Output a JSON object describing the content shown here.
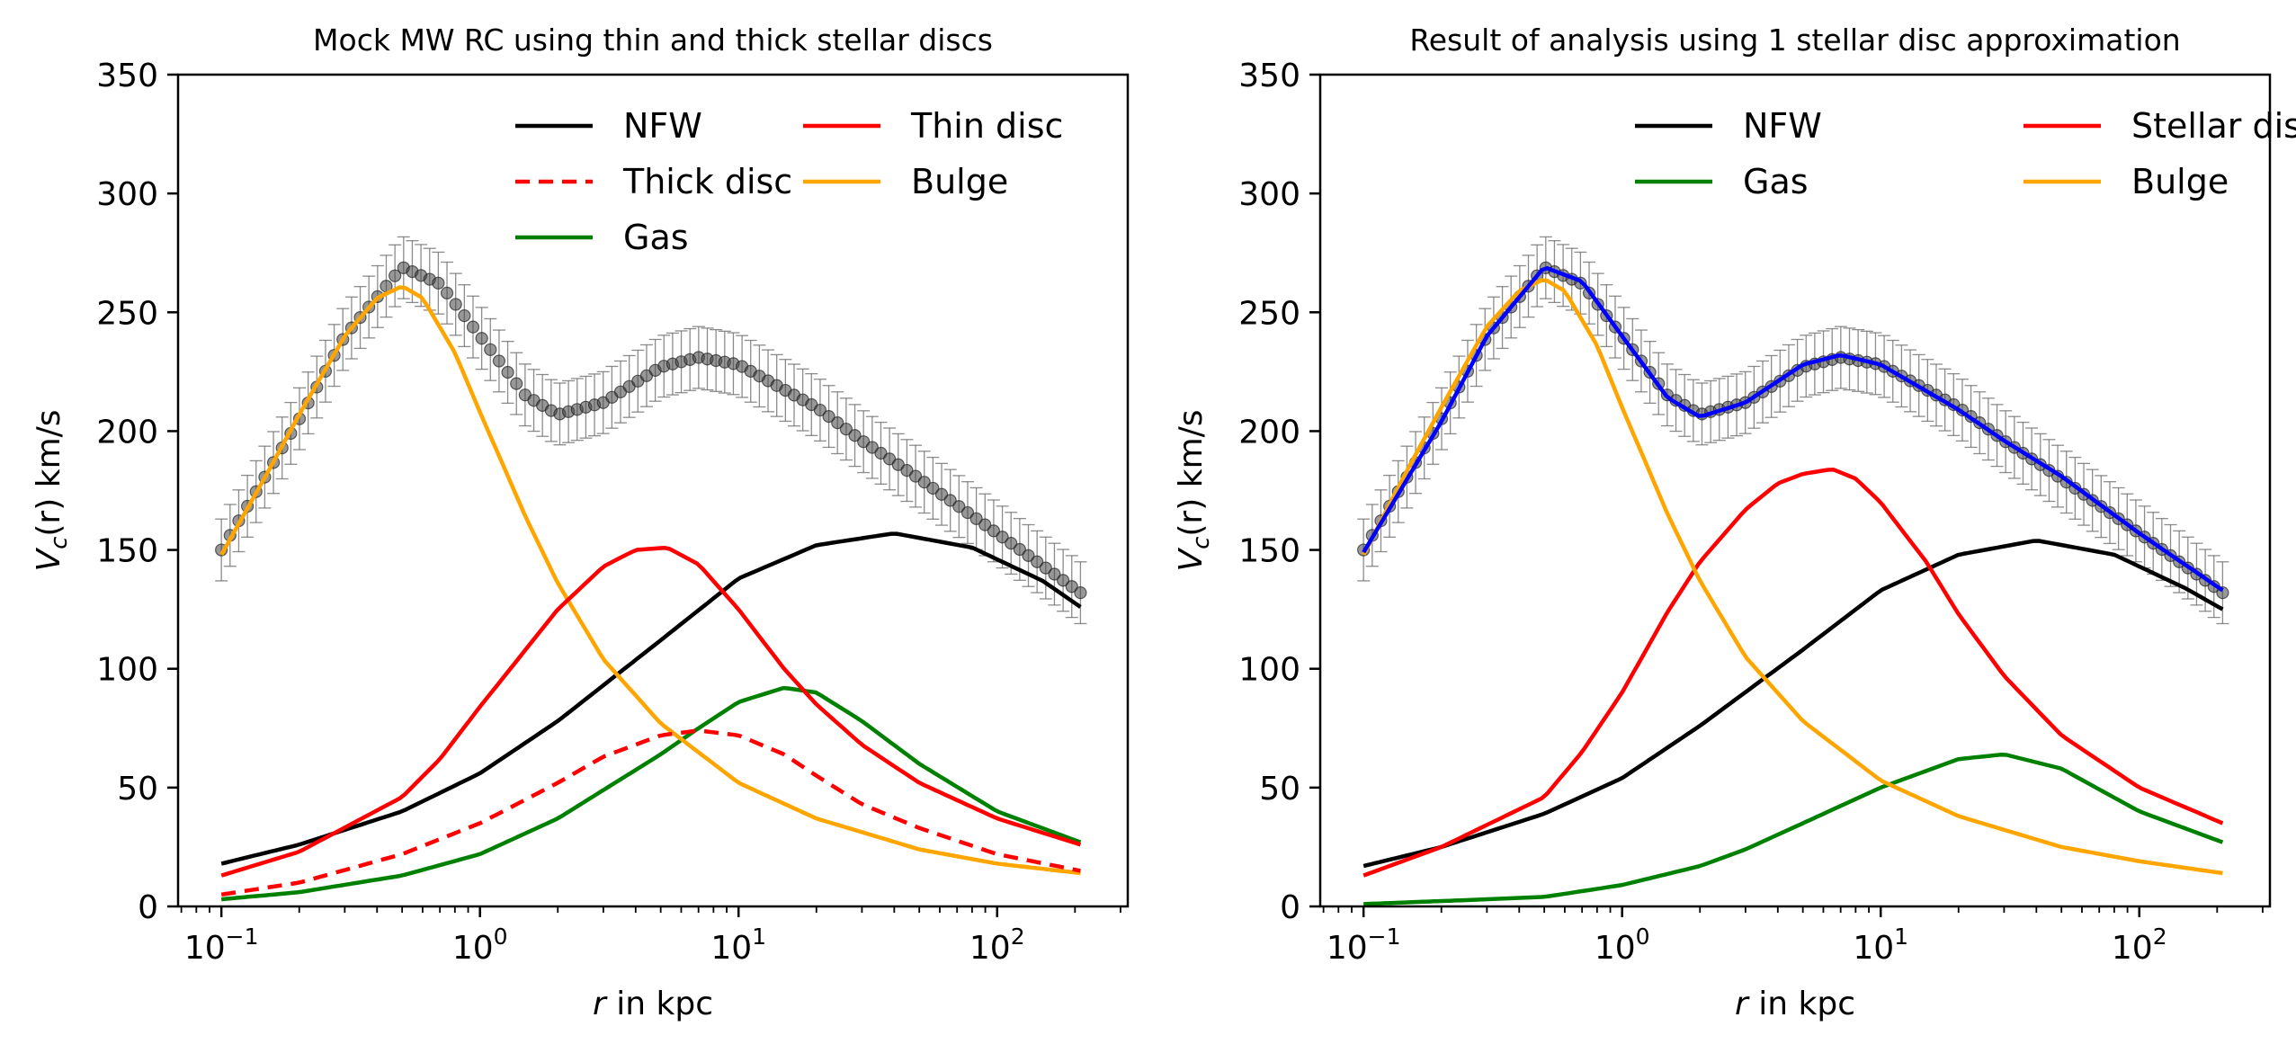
{
  "chart_data": [
    {
      "type": "line",
      "title": "Mock MW RC using thin and thick stellar discs",
      "xlabel_italic": "r",
      "xlabel_rest": " in kpc",
      "ylabel_prefix": "V",
      "ylabel_sub": "c",
      "ylabel_suffix": "(r) km/s",
      "xscale": "log",
      "xlim": [
        0.068,
        320
      ],
      "ylim": [
        0,
        350
      ],
      "xticks": [
        {
          "base": "10",
          "exp": "−1",
          "value": 0.1
        },
        {
          "base": "10",
          "exp": "0",
          "value": 1
        },
        {
          "base": "10",
          "exp": "1",
          "value": 10
        },
        {
          "base": "10",
          "exp": "2",
          "value": 100
        }
      ],
      "yticks": [
        "0",
        "50",
        "100",
        "150",
        "200",
        "250",
        "300",
        "350"
      ],
      "legend_position": "top-right",
      "legend": [
        {
          "label": "NFW",
          "color": "#000000",
          "dash": false
        },
        {
          "label": "Thick disc",
          "color": "#ff0000",
          "dash": true
        },
        {
          "label": "Gas",
          "color": "#008000",
          "dash": false
        },
        {
          "label": "Thin disc",
          "color": "#ff0000",
          "dash": false
        },
        {
          "label": "Bulge",
          "color": "#ffa500",
          "dash": false
        }
      ],
      "legend_columns": 2,
      "observed": {
        "x": [
          0.1,
          0.2,
          0.3,
          0.5,
          0.7,
          1.0,
          1.5,
          2.0,
          3.0,
          5.0,
          7.0,
          10,
          20,
          30,
          50,
          100,
          210
        ],
        "y": [
          150,
          205,
          240,
          269,
          262,
          240,
          215,
          207,
          212,
          227,
          231,
          228,
          210,
          196,
          180,
          157,
          132
        ],
        "yerr": 13,
        "color": "#444444"
      },
      "series": [
        {
          "name": "NFW",
          "color": "#000000",
          "dash": false,
          "x": [
            0.1,
            0.2,
            0.5,
            1,
            2,
            5,
            10,
            20,
            40,
            80,
            150,
            210
          ],
          "y": [
            18,
            26,
            40,
            56,
            78,
            112,
            138,
            152,
            157,
            151,
            137,
            126
          ]
        },
        {
          "name": "Gas",
          "color": "#008000",
          "dash": false,
          "x": [
            0.1,
            0.2,
            0.5,
            1,
            2,
            5,
            7,
            10,
            15,
            20,
            30,
            50,
            100,
            210
          ],
          "y": [
            3,
            6,
            13,
            22,
            37,
            64,
            75,
            86,
            92,
            90,
            78,
            60,
            40,
            27
          ]
        },
        {
          "name": "Bulge",
          "color": "#ffa500",
          "dash": false,
          "x": [
            0.1,
            0.15,
            0.2,
            0.3,
            0.4,
            0.5,
            0.6,
            0.8,
            1,
            1.5,
            2,
            3,
            5,
            10,
            20,
            50,
            100,
            210
          ],
          "y": [
            148,
            182,
            207,
            240,
            256,
            261,
            256,
            233,
            208,
            164,
            136,
            104,
            77,
            52,
            37,
            24,
            18,
            14
          ]
        },
        {
          "name": "Thick disc",
          "color": "#ff0000",
          "dash": true,
          "x": [
            0.1,
            0.2,
            0.5,
            1,
            2,
            3,
            5,
            7,
            10,
            15,
            20,
            30,
            50,
            100,
            210
          ],
          "y": [
            5,
            10,
            22,
            35,
            52,
            63,
            72,
            74,
            72,
            64,
            55,
            43,
            33,
            22,
            15
          ]
        },
        {
          "name": "Thin disc",
          "color": "#ff0000",
          "dash": false,
          "x": [
            0.1,
            0.2,
            0.5,
            0.7,
            1,
            1.5,
            2,
            3,
            4,
            5.3,
            7,
            10,
            15,
            20,
            30,
            50,
            100,
            210
          ],
          "y": [
            13,
            23,
            46,
            62,
            84,
            108,
            125,
            143,
            150,
            151,
            144,
            125,
            100,
            85,
            68,
            52,
            37,
            26
          ]
        }
      ]
    },
    {
      "type": "line",
      "title": "Result of analysis using 1 stellar disc approximation",
      "xlabel_italic": "r",
      "xlabel_rest": " in kpc",
      "ylabel_prefix": "V",
      "ylabel_sub": "c",
      "ylabel_suffix": "(r) km/s",
      "xscale": "log",
      "xlim": [
        0.068,
        320
      ],
      "ylim": [
        0,
        350
      ],
      "xticks": [
        {
          "base": "10",
          "exp": "−1",
          "value": 0.1
        },
        {
          "base": "10",
          "exp": "0",
          "value": 1
        },
        {
          "base": "10",
          "exp": "1",
          "value": 10
        },
        {
          "base": "10",
          "exp": "2",
          "value": 100
        }
      ],
      "yticks": [
        "0",
        "50",
        "100",
        "150",
        "200",
        "250",
        "300",
        "350"
      ],
      "legend_position": "top-right",
      "legend": [
        {
          "label": "NFW",
          "color": "#000000",
          "dash": false
        },
        {
          "label": "Gas",
          "color": "#008000",
          "dash": false
        },
        {
          "label": "Stellar disc",
          "color": "#ff0000",
          "dash": false
        },
        {
          "label": "Bulge",
          "color": "#ffa500",
          "dash": false
        }
      ],
      "legend_columns": 2,
      "observed": {
        "x": [
          0.1,
          0.2,
          0.3,
          0.5,
          0.7,
          1.0,
          1.5,
          2.0,
          3.0,
          5.0,
          7.0,
          10,
          20,
          30,
          50,
          100,
          210
        ],
        "y": [
          150,
          205,
          240,
          269,
          262,
          240,
          215,
          207,
          212,
          227,
          231,
          228,
          210,
          196,
          180,
          157,
          132
        ],
        "yerr": 13,
        "color": "#444444"
      },
      "fit": {
        "color": "#0000ff",
        "x": [
          0.1,
          0.2,
          0.3,
          0.5,
          0.7,
          1.0,
          1.5,
          2.0,
          3.0,
          5.0,
          7.0,
          10,
          20,
          30,
          50,
          100,
          210
        ],
        "y": [
          149,
          204,
          240,
          269,
          263,
          240,
          214,
          206,
          212,
          228,
          232,
          228,
          209,
          196,
          181,
          157,
          133
        ]
      },
      "series": [
        {
          "name": "NFW",
          "color": "#000000",
          "dash": false,
          "x": [
            0.1,
            0.2,
            0.5,
            1,
            2,
            5,
            10,
            20,
            40,
            80,
            150,
            210
          ],
          "y": [
            17,
            25,
            39,
            54,
            76,
            108,
            133,
            148,
            154,
            148,
            134,
            125
          ]
        },
        {
          "name": "Gas",
          "color": "#008000",
          "dash": false,
          "x": [
            0.1,
            0.3,
            0.5,
            1,
            2,
            3,
            5,
            10,
            20,
            30,
            50,
            100,
            210
          ],
          "y": [
            1,
            3,
            4,
            9,
            17,
            24,
            35,
            50,
            62,
            64,
            58,
            40,
            27
          ]
        },
        {
          "name": "Stellar disc",
          "color": "#ff0000",
          "dash": false,
          "x": [
            0.1,
            0.2,
            0.5,
            0.7,
            1,
            1.5,
            2,
            3,
            4,
            5,
            6.5,
            8,
            10,
            15,
            20,
            30,
            50,
            100,
            210
          ],
          "y": [
            13,
            25,
            46,
            65,
            90,
            124,
            145,
            167,
            178,
            182,
            184,
            180,
            170,
            145,
            123,
            97,
            72,
            50,
            35
          ]
        },
        {
          "name": "Bulge",
          "color": "#ffa500",
          "dash": false,
          "x": [
            0.1,
            0.15,
            0.2,
            0.3,
            0.4,
            0.5,
            0.6,
            0.8,
            1,
            1.5,
            2,
            3,
            5,
            10,
            20,
            50,
            100,
            210
          ],
          "y": [
            148,
            185,
            210,
            244,
            259,
            264,
            259,
            236,
            210,
            165,
            137,
            105,
            78,
            53,
            38,
            25,
            19,
            14
          ]
        }
      ]
    }
  ]
}
